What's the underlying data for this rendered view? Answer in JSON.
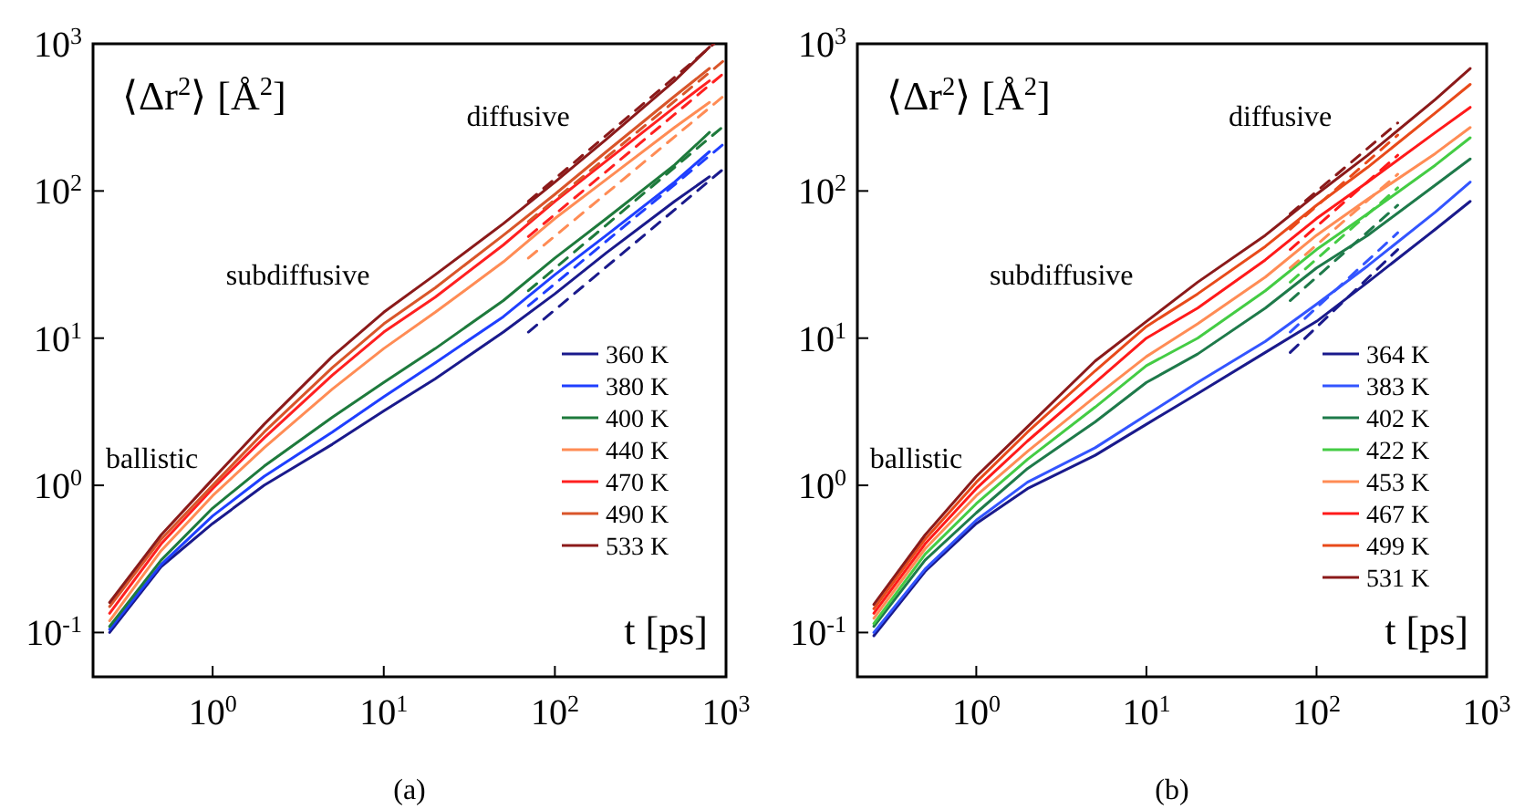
{
  "chart_data": [
    {
      "type": "line",
      "title": "(a)",
      "xlabel": "t [ps]",
      "ylabel": "⟨Δr$^{2}$⟩ [Å$^{2}$]",
      "log": "xy",
      "legend": "right",
      "xlim": [
        0.2,
        1000
      ],
      "ylim": [
        0.05,
        1000
      ],
      "xticks": [
        {
          "value": 1,
          "label": "10$^{0}$"
        },
        {
          "value": 10,
          "label": "10$^{1}$"
        },
        {
          "value": 100,
          "label": "10$^{2}$"
        },
        {
          "value": 1000,
          "label": "10$^{3}$"
        }
      ],
      "yticks": [
        {
          "value": 0.1,
          "label": "10$^{-1}$"
        },
        {
          "value": 1,
          "label": "10$^{0}$"
        },
        {
          "value": 10,
          "label": "10$^{1}$"
        },
        {
          "value": 100,
          "label": "10$^{2}$"
        },
        {
          "value": 1000,
          "label": "10$^{3}$"
        }
      ],
      "annotations": [
        "ballistic",
        "subdiffusive",
        "diffusive"
      ],
      "series": [
        {
          "name": "360 K",
          "color": "#1a1a8c",
          "line_style": "solid",
          "x": [
            0.25,
            0.5,
            1,
            2,
            5,
            10,
            20,
            50,
            100,
            200,
            500,
            800
          ],
          "values": [
            0.1,
            0.28,
            0.55,
            1.0,
            1.9,
            3.2,
            5.3,
            11,
            20,
            38,
            85,
            125
          ]
        },
        {
          "name": "380 K",
          "color": "#1f3fff",
          "line_style": "solid",
          "x": [
            0.25,
            0.5,
            1,
            2,
            5,
            10,
            20,
            50,
            100,
            200,
            500,
            800
          ],
          "values": [
            0.105,
            0.29,
            0.62,
            1.15,
            2.3,
            4.0,
            6.8,
            14,
            27,
            50,
            115,
            185
          ]
        },
        {
          "name": "400 K",
          "color": "#1e7a3c",
          "line_style": "solid",
          "x": [
            0.25,
            0.5,
            1,
            2,
            5,
            10,
            20,
            50,
            100,
            200,
            500,
            800
          ],
          "values": [
            0.11,
            0.31,
            0.7,
            1.35,
            2.9,
            5.0,
            8.5,
            18,
            35,
            65,
            150,
            250
          ]
        },
        {
          "name": "440 K",
          "color": "#ff8c55",
          "line_style": "solid",
          "x": [
            0.25,
            0.5,
            1,
            2,
            5,
            10,
            20,
            50,
            100,
            200,
            500,
            800
          ],
          "values": [
            0.12,
            0.36,
            0.85,
            1.8,
            4.5,
            8.5,
            15,
            33,
            65,
            120,
            270,
            400
          ]
        },
        {
          "name": "470 K",
          "color": "#ff2020",
          "line_style": "solid",
          "x": [
            0.25,
            0.5,
            1,
            2,
            5,
            10,
            20,
            50,
            100,
            200,
            500,
            800
          ],
          "values": [
            0.135,
            0.4,
            0.95,
            2.1,
            5.6,
            11,
            19,
            43,
            85,
            160,
            370,
            560
          ]
        },
        {
          "name": "490 K",
          "color": "#d9552a",
          "line_style": "solid",
          "x": [
            0.25,
            0.5,
            1,
            2,
            5,
            10,
            20,
            50,
            100,
            200,
            500,
            800
          ],
          "values": [
            0.15,
            0.43,
            1.0,
            2.3,
            6.3,
            12.5,
            22,
            50,
            95,
            185,
            440,
            680
          ]
        },
        {
          "name": "533 K",
          "color": "#8b1a1a",
          "line_style": "solid",
          "x": [
            0.25,
            0.5,
            1,
            2,
            5,
            10,
            20,
            50,
            100,
            200,
            500,
            800
          ],
          "values": [
            0.16,
            0.46,
            1.1,
            2.6,
            7.5,
            15,
            27,
            60,
            115,
            225,
            560,
            950
          ]
        },
        {
          "color": "#1a1a8c",
          "line_style": "dashed",
          "x": [
            70,
            1000
          ],
          "values": [
            11,
            146
          ]
        },
        {
          "color": "#1f3fff",
          "line_style": "dashed",
          "x": [
            70,
            1000
          ],
          "values": [
            16.6,
            215
          ]
        },
        {
          "color": "#1e7a3c",
          "line_style": "dashed",
          "x": [
            70,
            1000
          ],
          "values": [
            21,
            285
          ]
        },
        {
          "color": "#ff8c55",
          "line_style": "dashed",
          "x": [
            70,
            1000
          ],
          "values": [
            35,
            455
          ]
        },
        {
          "color": "#ff2020",
          "line_style": "dashed",
          "x": [
            70,
            1000
          ],
          "values": [
            49,
            650
          ]
        },
        {
          "color": "#d9552a",
          "line_style": "dashed",
          "x": [
            70,
            1000
          ],
          "values": [
            62,
            790
          ]
        },
        {
          "color": "#8b1a1a",
          "line_style": "dashed",
          "x": [
            70,
            850
          ],
          "values": [
            85,
            1000
          ]
        }
      ]
    },
    {
      "type": "line",
      "title": "(b)",
      "xlabel": "t [ps]",
      "ylabel": "⟨Δr$^{2}$⟩ [Å$^{2}$]",
      "log": "xy",
      "legend": "right",
      "xlim": [
        0.2,
        1000
      ],
      "ylim": [
        0.05,
        1000
      ],
      "xticks": [
        {
          "value": 1,
          "label": "10$^{0}$"
        },
        {
          "value": 10,
          "label": "10$^{1}$"
        },
        {
          "value": 100,
          "label": "10$^{2}$"
        },
        {
          "value": 1000,
          "label": "10$^{3}$"
        }
      ],
      "yticks": [
        {
          "value": 0.1,
          "label": "10$^{-1}$"
        },
        {
          "value": 1,
          "label": "10$^{0}$"
        },
        {
          "value": 10,
          "label": "10$^{1}$"
        },
        {
          "value": 100,
          "label": "10$^{2}$"
        },
        {
          "value": 1000,
          "label": "10$^{3}$"
        }
      ],
      "annotations": [
        "ballistic",
        "subdiffusive",
        "diffusive"
      ],
      "series": [
        {
          "name": "364 K",
          "color": "#1a1a8c",
          "line_style": "solid",
          "x": [
            0.25,
            0.5,
            1,
            2,
            5,
            10,
            20,
            50,
            100,
            200,
            500,
            800
          ],
          "values": [
            0.095,
            0.26,
            0.55,
            0.95,
            1.6,
            2.6,
            4.2,
            8,
            13,
            24,
            55,
            85
          ]
        },
        {
          "name": "383 K",
          "color": "#3355ff",
          "line_style": "solid",
          "x": [
            0.25,
            0.5,
            1,
            2,
            5,
            10,
            20,
            50,
            100,
            200,
            500,
            800
          ],
          "values": [
            0.1,
            0.27,
            0.58,
            1.05,
            1.8,
            3.0,
            5.0,
            9.5,
            17,
            31,
            72,
            115
          ]
        },
        {
          "name": "402 K",
          "color": "#1e7a4a",
          "line_style": "solid",
          "x": [
            0.25,
            0.5,
            1,
            2,
            5,
            10,
            20,
            50,
            100,
            200,
            500,
            800
          ],
          "values": [
            0.11,
            0.31,
            0.65,
            1.3,
            2.7,
            5.0,
            7.8,
            16,
            30,
            50,
            110,
            165
          ]
        },
        {
          "name": "422 K",
          "color": "#44cc44",
          "line_style": "solid",
          "x": [
            0.25,
            0.5,
            1,
            2,
            5,
            10,
            20,
            50,
            100,
            200,
            500,
            800
          ],
          "values": [
            0.115,
            0.34,
            0.75,
            1.5,
            3.4,
            6.5,
            10,
            21,
            40,
            70,
            150,
            230
          ]
        },
        {
          "name": "453 K",
          "color": "#ff8c55",
          "line_style": "solid",
          "x": [
            0.25,
            0.5,
            1,
            2,
            5,
            10,
            20,
            50,
            100,
            200,
            500,
            800
          ],
          "values": [
            0.125,
            0.37,
            0.85,
            1.7,
            4.0,
            7.5,
            12.5,
            26,
            50,
            88,
            180,
            270
          ]
        },
        {
          "name": "467 K",
          "color": "#ff1a1a",
          "line_style": "solid",
          "x": [
            0.25,
            0.5,
            1,
            2,
            5,
            10,
            20,
            50,
            100,
            200,
            500,
            800
          ],
          "values": [
            0.135,
            0.4,
            0.95,
            2.0,
            5.0,
            10,
            16,
            34,
            65,
            115,
            250,
            370
          ]
        },
        {
          "name": "499 K",
          "color": "#e84a1a",
          "line_style": "solid",
          "x": [
            0.25,
            0.5,
            1,
            2,
            5,
            10,
            20,
            50,
            100,
            200,
            500,
            800
          ],
          "values": [
            0.145,
            0.43,
            1.05,
            2.3,
            6.0,
            12,
            20,
            42,
            80,
            145,
            340,
            530
          ]
        },
        {
          "name": "531 K",
          "color": "#8b1a1a",
          "line_style": "solid",
          "x": [
            0.25,
            0.5,
            1,
            2,
            5,
            10,
            20,
            50,
            100,
            200,
            500,
            800
          ],
          "values": [
            0.155,
            0.46,
            1.15,
            2.5,
            7.0,
            13,
            24,
            50,
            95,
            175,
            420,
            680
          ]
        },
        {
          "color": "#1a1a8c",
          "line_style": "dashed",
          "x": [
            70,
            300
          ],
          "values": [
            8,
            40
          ]
        },
        {
          "color": "#3355ff",
          "line_style": "dashed",
          "x": [
            70,
            300
          ],
          "values": [
            11,
            52
          ]
        },
        {
          "color": "#1e7a4a",
          "line_style": "dashed",
          "x": [
            70,
            300
          ],
          "values": [
            18,
            80
          ]
        },
        {
          "color": "#44cc44",
          "line_style": "dashed",
          "x": [
            70,
            300
          ],
          "values": [
            24,
            105
          ]
        },
        {
          "color": "#ff8c55",
          "line_style": "dashed",
          "x": [
            70,
            300
          ],
          "values": [
            30,
            130
          ]
        },
        {
          "color": "#ff1a1a",
          "line_style": "dashed",
          "x": [
            70,
            300
          ],
          "values": [
            40,
            175
          ]
        },
        {
          "color": "#e84a1a",
          "line_style": "dashed",
          "x": [
            70,
            300
          ],
          "values": [
            55,
            240
          ]
        },
        {
          "color": "#8b1a1a",
          "line_style": "dashed",
          "x": [
            70,
            300
          ],
          "values": [
            70,
            290
          ]
        }
      ]
    }
  ]
}
